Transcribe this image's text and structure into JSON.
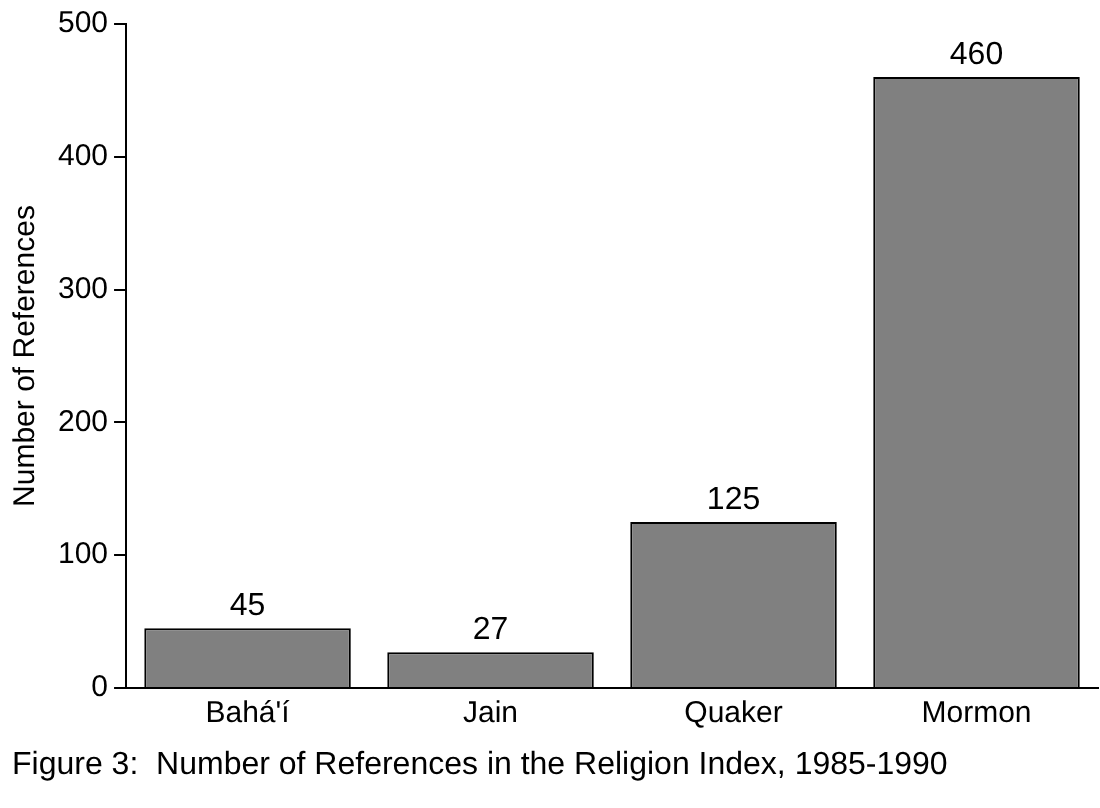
{
  "chart_data": {
    "type": "bar",
    "title": "Figure 3:  Number of References in the Religion Index, 1985-1990",
    "ylabel": "Number of References",
    "categories": [
      "Bahá'í",
      "Jain",
      "Quaker",
      "Mormon"
    ],
    "values": [
      45,
      27,
      125,
      460
    ],
    "color": "#808080",
    "ylim": [
      0,
      500
    ],
    "yticks": [
      0,
      100,
      200,
      300,
      400,
      500
    ],
    "data_labels": true,
    "grid": false,
    "legend": false
  }
}
